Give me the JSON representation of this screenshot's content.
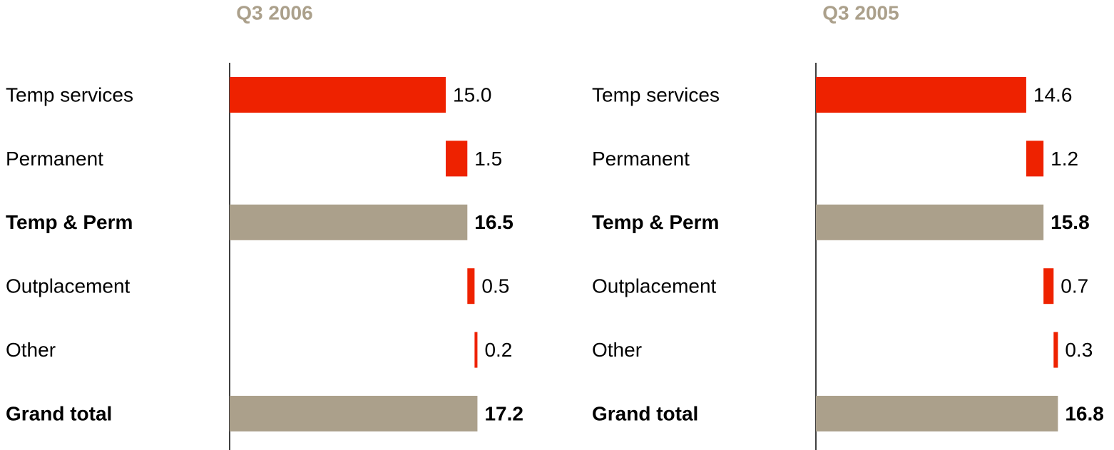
{
  "chart_data": [
    {
      "type": "waterfall",
      "title": "Q3 2006",
      "categories": [
        "Temp services",
        "Permanent",
        "Temp & Perm",
        "Outplacement",
        "Other",
        "Grand total"
      ],
      "values": [
        15.0,
        1.5,
        16.5,
        0.5,
        0.2,
        17.2
      ],
      "value_labels": [
        "15.0",
        "1.5",
        "16.5",
        "0.5",
        "0.2",
        "17.2"
      ],
      "totals": [
        false,
        false,
        true,
        false,
        false,
        true
      ],
      "color": "#ee2200",
      "total_color": "#aba08b",
      "xlim": [
        0,
        20
      ]
    },
    {
      "type": "waterfall",
      "title": "Q3 2005",
      "categories": [
        "Temp services",
        "Permanent",
        "Temp & Perm",
        "Outplacement",
        "Other",
        "Grand total"
      ],
      "values": [
        14.6,
        1.2,
        15.8,
        0.7,
        0.3,
        16.8
      ],
      "value_labels": [
        "14.6",
        "1.2",
        "15.8",
        "0.7",
        "0.3",
        "16.8"
      ],
      "totals": [
        false,
        false,
        true,
        false,
        false,
        true
      ],
      "color": "#ee2200",
      "total_color": "#aba08b",
      "xlim": [
        0,
        20
      ]
    }
  ]
}
